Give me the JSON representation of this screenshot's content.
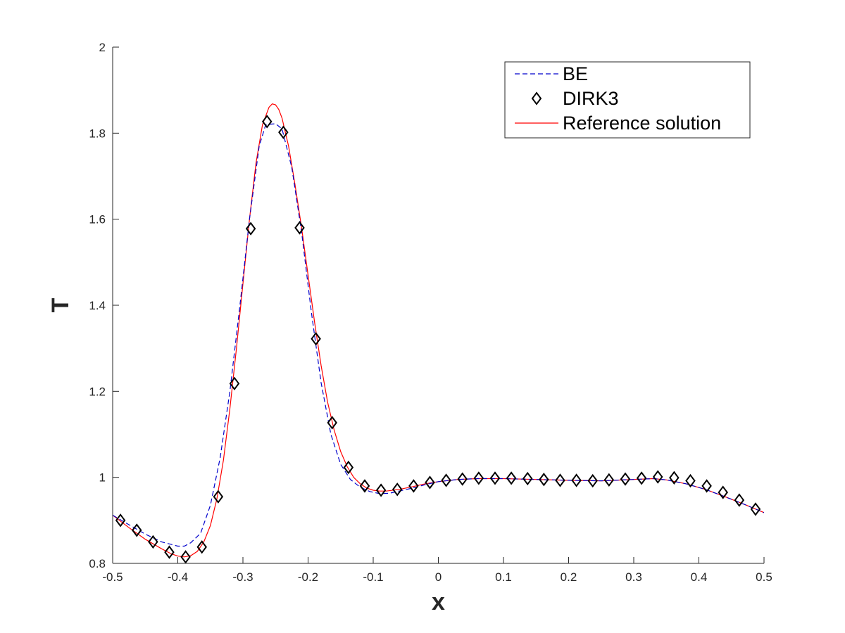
{
  "chart_data": {
    "type": "line",
    "title": "",
    "xlabel": "x",
    "ylabel": "T",
    "xlim": [
      -0.5,
      0.5
    ],
    "ylim": [
      0.8,
      2.0
    ],
    "xticks": [
      -0.5,
      -0.4,
      -0.3,
      -0.2,
      -0.1,
      0,
      0.1,
      0.2,
      0.3,
      0.4,
      0.5
    ],
    "xtick_labels": [
      "-0.5",
      "-0.4",
      "-0.3",
      "-0.2",
      "-0.1",
      "0",
      "0.1",
      "0.2",
      "0.3",
      "0.4",
      "0.5"
    ],
    "yticks": [
      0.8,
      1.0,
      1.2,
      1.4,
      1.6,
      1.8,
      2.0
    ],
    "ytick_labels": [
      "0.8",
      "1",
      "1.2",
      "1.4",
      "1.6",
      "1.8",
      "2"
    ],
    "grid": false,
    "legend_position": "top-right",
    "series": [
      {
        "name": "BE",
        "style": "dashed",
        "color": "#0000cc",
        "x": [
          -0.5,
          -0.475,
          -0.45,
          -0.425,
          -0.4,
          -0.39,
          -0.38,
          -0.365,
          -0.35,
          -0.335,
          -0.32,
          -0.305,
          -0.29,
          -0.275,
          -0.265,
          -0.25,
          -0.24,
          -0.225,
          -0.21,
          -0.195,
          -0.18,
          -0.165,
          -0.15,
          -0.135,
          -0.12,
          -0.105,
          -0.09,
          -0.075,
          -0.06,
          -0.04,
          -0.02,
          0,
          0.03,
          0.06,
          0.1,
          0.15,
          0.2,
          0.25,
          0.3,
          0.33,
          0.35,
          0.38,
          0.41,
          0.44,
          0.47,
          0.5
        ],
        "y": [
          0.912,
          0.89,
          0.868,
          0.85,
          0.84,
          0.84,
          0.848,
          0.87,
          0.935,
          1.045,
          1.2,
          1.395,
          1.6,
          1.77,
          1.82,
          1.822,
          1.81,
          1.72,
          1.57,
          1.385,
          1.22,
          1.1,
          1.03,
          0.995,
          0.977,
          0.967,
          0.962,
          0.963,
          0.968,
          0.975,
          0.983,
          0.99,
          0.995,
          0.997,
          0.997,
          0.995,
          0.993,
          0.992,
          0.995,
          0.997,
          0.994,
          0.985,
          0.972,
          0.955,
          0.937,
          0.918
        ]
      },
      {
        "name": "DIRK3",
        "style": "markers",
        "marker": "diamond",
        "color": "#000000",
        "x": [
          -0.488,
          -0.463,
          -0.438,
          -0.413,
          -0.388,
          -0.363,
          -0.338,
          -0.313,
          -0.288,
          -0.263,
          -0.238,
          -0.213,
          -0.188,
          -0.163,
          -0.138,
          -0.113,
          -0.088,
          -0.063,
          -0.038,
          -0.013,
          0.012,
          0.037,
          0.062,
          0.087,
          0.112,
          0.137,
          0.162,
          0.187,
          0.212,
          0.237,
          0.262,
          0.287,
          0.312,
          0.337,
          0.362,
          0.387,
          0.412,
          0.437,
          0.462,
          0.487
        ],
        "y": [
          0.9,
          0.877,
          0.85,
          0.826,
          0.815,
          0.838,
          0.955,
          1.218,
          1.578,
          1.827,
          1.802,
          1.58,
          1.322,
          1.127,
          1.023,
          0.98,
          0.97,
          0.972,
          0.98,
          0.988,
          0.993,
          0.996,
          0.998,
          0.998,
          0.998,
          0.997,
          0.995,
          0.993,
          0.993,
          0.992,
          0.994,
          0.996,
          0.998,
          1.001,
          0.999,
          0.992,
          0.98,
          0.965,
          0.947,
          0.926
        ]
      },
      {
        "name": "Reference solution",
        "style": "solid",
        "color": "#ff0000",
        "x": [
          -0.5,
          -0.475,
          -0.45,
          -0.425,
          -0.41,
          -0.4,
          -0.39,
          -0.38,
          -0.37,
          -0.36,
          -0.35,
          -0.34,
          -0.33,
          -0.32,
          -0.31,
          -0.3,
          -0.29,
          -0.28,
          -0.27,
          -0.26,
          -0.255,
          -0.25,
          -0.245,
          -0.24,
          -0.23,
          -0.22,
          -0.21,
          -0.2,
          -0.19,
          -0.18,
          -0.17,
          -0.16,
          -0.15,
          -0.14,
          -0.13,
          -0.12,
          -0.11,
          -0.1,
          -0.09,
          -0.08,
          -0.06,
          -0.04,
          -0.02,
          0,
          0.03,
          0.06,
          0.1,
          0.15,
          0.2,
          0.25,
          0.3,
          0.33,
          0.35,
          0.38,
          0.41,
          0.44,
          0.47,
          0.5
        ],
        "y": [
          0.912,
          0.883,
          0.856,
          0.834,
          0.822,
          0.817,
          0.815,
          0.818,
          0.828,
          0.85,
          0.888,
          0.95,
          1.04,
          1.16,
          1.3,
          1.45,
          1.6,
          1.73,
          1.82,
          1.86,
          1.868,
          1.866,
          1.855,
          1.835,
          1.77,
          1.68,
          1.58,
          1.47,
          1.36,
          1.26,
          1.175,
          1.11,
          1.06,
          1.025,
          1.0,
          0.985,
          0.975,
          0.97,
          0.968,
          0.968,
          0.972,
          0.978,
          0.985,
          0.99,
          0.995,
          0.997,
          0.997,
          0.995,
          0.993,
          0.992,
          0.995,
          0.997,
          0.994,
          0.985,
          0.972,
          0.955,
          0.937,
          0.918
        ]
      }
    ]
  }
}
